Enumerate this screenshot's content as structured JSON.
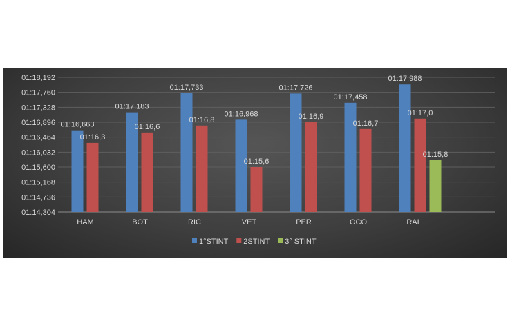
{
  "chart_data": {
    "type": "bar",
    "title": "",
    "xlabel": "",
    "ylabel": "",
    "categories": [
      "HAM",
      "BOT",
      "RIC",
      "VET",
      "PER",
      "OCO",
      "RAI"
    ],
    "yticks": [
      "01:14,304",
      "01:14,736",
      "01:15,168",
      "01:15,600",
      "01:16,032",
      "01:16,464",
      "01:16,896",
      "01:17,328",
      "01:17,760",
      "01:18,192"
    ],
    "ylim": [
      74.304,
      78.192
    ],
    "grid": true,
    "legend": "bottom",
    "series": [
      {
        "name": "1°STINT",
        "color": "#4f81bd",
        "values": [
          76.663,
          77.183,
          77.733,
          76.968,
          77.726,
          77.458,
          77.988
        ],
        "labels": [
          "01:16,663",
          "01:17,183",
          "01:17,733",
          "01:16,968",
          "01:17,726",
          "01:17,458",
          "01:17,988"
        ]
      },
      {
        "name": "2STINT",
        "color": "#c0504d",
        "values": [
          76.3,
          76.6,
          76.8,
          75.6,
          76.9,
          76.7,
          77.0
        ],
        "labels": [
          "01:16,3",
          "01:16,6",
          "01:16,8",
          "01:15,6",
          "01:16,9",
          "01:16,7",
          "01:17,0"
        ]
      },
      {
        "name": "3° STINT",
        "color": "#9bbb59",
        "values": [
          null,
          null,
          null,
          null,
          null,
          null,
          75.8
        ],
        "labels": [
          null,
          null,
          null,
          null,
          null,
          null,
          "01:15,8"
        ]
      }
    ]
  }
}
